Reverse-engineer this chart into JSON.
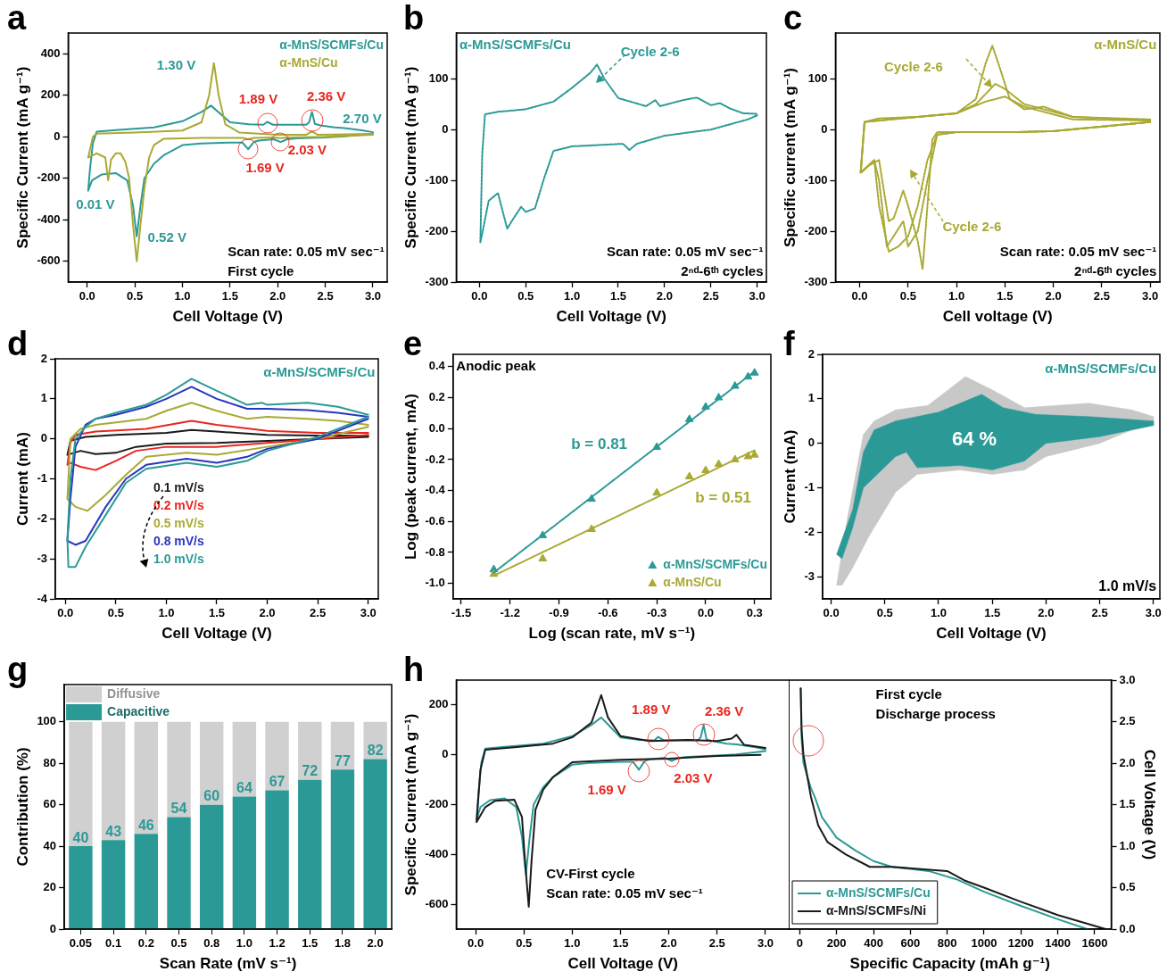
{
  "chart_data": [
    {
      "type": "line",
      "title": "a",
      "xlabel": "Cell Voltage (V)",
      "ylabel": "Specific Current (mA g⁻¹)",
      "xlim": [
        -0.2,
        3.15
      ],
      "ylim": [
        -700,
        500
      ],
      "xticks": [
        {
          "value": 0,
          "label": "0.0"
        },
        0.5,
        {
          "value": 1,
          "label": "1.0"
        },
        1.5,
        {
          "value": 2,
          "label": "2.0"
        },
        2.5,
        {
          "value": 3,
          "label": "3.0"
        }
      ],
      "yticks": [
        -600,
        -400,
        -200,
        0,
        200,
        400
      ],
      "legend": "top right",
      "series": [
        {
          "name": "α-MnS/SCMFs/Cu",
          "color": "#2b9a96",
          "x": [
            3.0,
            2.7,
            2.5,
            2.2,
            2.1,
            2.03,
            1.96,
            1.8,
            1.75,
            1.69,
            1.63,
            1.5,
            1.2,
            1.0,
            0.8,
            0.7,
            0.6,
            0.56,
            0.52,
            0.48,
            0.42,
            0.3,
            0.15,
            0.05,
            0.01,
            0.03,
            0.06,
            0.1,
            0.3,
            0.7,
            1.0,
            1.2,
            1.3,
            1.4,
            1.5,
            1.7,
            1.85,
            1.89,
            1.95,
            2.3,
            2.33,
            2.36,
            2.39,
            2.45,
            2.6,
            2.7,
            2.9,
            3.0
          ],
          "values": [
            15,
            2,
            -3,
            -8,
            -12,
            -25,
            -12,
            -18,
            -25,
            -60,
            -28,
            -28,
            -32,
            -40,
            -90,
            -130,
            -200,
            -330,
            -480,
            -330,
            -210,
            -175,
            -182,
            -210,
            -260,
            -150,
            -30,
            25,
            32,
            45,
            75,
            120,
            150,
            110,
            70,
            60,
            58,
            72,
            58,
            58,
            70,
            120,
            62,
            55,
            45,
            42,
            30,
            22
          ]
        },
        {
          "name": "α-MnS/Cu",
          "color": "#a9a934",
          "x": [
            3.0,
            2.5,
            2.1,
            2.03,
            1.96,
            1.75,
            1.69,
            1.63,
            1.2,
            0.8,
            0.7,
            0.65,
            0.6,
            0.56,
            0.52,
            0.48,
            0.44,
            0.4,
            0.35,
            0.3,
            0.25,
            0.22,
            0.19,
            0.1,
            0.01,
            0.03,
            0.06,
            0.1,
            0.5,
            1.0,
            1.2,
            1.28,
            1.33,
            1.38,
            1.45,
            1.6,
            2.0,
            2.3,
            2.36,
            2.42,
            3.0
          ],
          "values": [
            10,
            0,
            -3,
            -6,
            -3,
            -5,
            -12,
            -5,
            -5,
            -10,
            -40,
            -100,
            -250,
            -420,
            -600,
            -420,
            -200,
            -120,
            -80,
            -80,
            -110,
            -210,
            -100,
            -80,
            -100,
            -60,
            0,
            15,
            20,
            30,
            70,
            200,
            355,
            200,
            60,
            20,
            10,
            10,
            25,
            10,
            14
          ]
        }
      ],
      "annotations": [
        {
          "text": "1.30 V",
          "x": 1.3,
          "y": 150
        },
        {
          "text": "1.89 V",
          "x": 1.89,
          "y": 65
        },
        {
          "text": "2.36 V",
          "x": 2.36,
          "y": 80
        },
        {
          "text": "2.70 V",
          "x": 2.7,
          "y": 40
        },
        {
          "text": "1.69 V",
          "x": 1.69,
          "y": -60
        },
        {
          "text": "2.03 V",
          "x": 2.03,
          "y": -25
        },
        {
          "text": "0.01 V",
          "x": 0.01,
          "y": -260
        },
        {
          "text": "0.52 V",
          "x": 0.52,
          "y": -480
        },
        "Scan rate: 0.05 mV sec⁻¹",
        "First cycle"
      ]
    },
    {
      "type": "line",
      "title": "b",
      "xlabel": "Cell Voltage (V)",
      "ylabel": "Specific Current (mA g⁻¹)",
      "xlim": [
        -0.25,
        3.1
      ],
      "ylim": [
        -300,
        190
      ],
      "xticks": [
        {
          "value": 0,
          "label": "0.0"
        },
        0.5,
        {
          "value": 1,
          "label": "1.0"
        },
        1.5,
        {
          "value": 2,
          "label": "2.0"
        },
        2.5,
        {
          "value": 3,
          "label": "3.0"
        }
      ],
      "yticks": [
        -300,
        -200,
        -100,
        0,
        100
      ],
      "series": [
        {
          "color": "#2b9a96",
          "line_style": "dotted",
          "x": [
            3.0,
            2.9,
            2.5,
            2.0,
            1.7,
            1.62,
            1.55,
            1.0,
            0.8,
            0.7,
            0.6,
            0.5,
            0.45,
            0.35,
            0.3,
            0.2,
            0.1,
            0.03,
            0.01,
            0.03,
            0.06,
            0.2,
            0.5,
            0.8,
            1.0,
            1.2,
            1.27,
            1.35,
            1.5,
            1.8,
            1.9,
            1.95,
            2.2,
            2.35,
            2.5,
            2.6,
            2.7,
            2.85,
            3.0
          ],
          "values": [
            28,
            20,
            0,
            -12,
            -28,
            -40,
            -28,
            -33,
            -42,
            -95,
            -155,
            -162,
            -152,
            -180,
            -195,
            -125,
            -140,
            -205,
            -222,
            -50,
            30,
            35,
            40,
            55,
            82,
            112,
            128,
            100,
            62,
            46,
            58,
            46,
            58,
            63,
            48,
            52,
            42,
            32,
            31
          ]
        }
      ],
      "annotations": [
        "α-MnS/SCMFs/Cu",
        "Cycle 2-6",
        "Scan rate: 0.05 mV sec⁻¹",
        "2ⁿᵈ-6ᵗʰ cycles"
      ]
    },
    {
      "type": "line",
      "title": "c",
      "xlabel": "Cell voltage (V)",
      "ylabel": "Specific current (mA g⁻¹)",
      "xlim": [
        -0.25,
        3.1
      ],
      "ylim": [
        -300,
        190
      ],
      "xticks": [
        {
          "value": 0,
          "label": "0.0"
        },
        0.5,
        {
          "value": 1,
          "label": "1.0"
        },
        1.5,
        {
          "value": 2,
          "label": "2.0"
        },
        2.5,
        {
          "value": 3,
          "label": "3.0"
        }
      ],
      "yticks": [
        -300,
        -200,
        -100,
        0,
        100
      ],
      "series": [
        {
          "color": "#a9a934",
          "line_style": "dotted",
          "x": [
            3.0,
            2.0,
            1.6,
            1.0,
            0.8,
            0.75,
            0.7,
            0.65,
            0.6,
            0.5,
            0.45,
            0.35,
            0.3,
            0.2,
            0.1,
            0.01,
            0.05,
            0.2,
            0.6,
            1.0,
            1.2,
            1.3,
            1.37,
            1.45,
            1.55,
            1.7,
            1.9,
            2.2,
            3.0
          ],
          "values": [
            15,
            -3,
            -5,
            -5,
            -5,
            -20,
            -150,
            -275,
            -220,
            -150,
            -120,
            -175,
            -180,
            -60,
            -70,
            -85,
            15,
            22,
            25,
            32,
            60,
            130,
            165,
            120,
            60,
            40,
            45,
            25,
            20
          ]
        },
        {
          "color": "#a9a934",
          "line_style": "dotted",
          "x": [
            3.0,
            2.0,
            1.6,
            1.0,
            0.8,
            0.7,
            0.6,
            0.5,
            0.45,
            0.35,
            0.28,
            0.2,
            0.15,
            0.01,
            0.05,
            0.6,
            1.0,
            1.2,
            1.4,
            1.5,
            1.7,
            1.9,
            2.2,
            3.0
          ],
          "values": [
            15,
            -3,
            -5,
            -5,
            -10,
            -100,
            -200,
            -230,
            -180,
            -210,
            -230,
            -100,
            -60,
            -85,
            15,
            25,
            32,
            50,
            90,
            80,
            50,
            40,
            25,
            18
          ]
        },
        {
          "color": "#a9a934",
          "line_style": "dotted",
          "x": [
            3.0,
            2.0,
            1.6,
            1.0,
            0.8,
            0.7,
            0.6,
            0.5,
            0.4,
            0.3,
            0.2,
            0.15,
            0.01,
            0.05,
            0.6,
            1.0,
            1.3,
            1.5,
            1.7,
            1.9,
            2.2,
            3.0
          ],
          "values": [
            15,
            -3,
            -5,
            -5,
            -10,
            -60,
            -150,
            -210,
            -230,
            -240,
            -150,
            -60,
            -85,
            15,
            25,
            32,
            55,
            65,
            45,
            35,
            20,
            18
          ]
        }
      ],
      "annotations": [
        "α-MnS/Cu",
        "Cycle 2-6",
        "Cycle 2-6",
        "Scan rate: 0.05 mV sec⁻¹",
        "2ⁿᵈ-6ᵗʰ cycles"
      ]
    },
    {
      "type": "line",
      "title": "d",
      "xlabel": "Cell Voltage (V)",
      "ylabel": "Current (mA)",
      "xlim": [
        -0.1,
        3.1
      ],
      "ylim": [
        -4,
        2
      ],
      "xticks": [
        {
          "value": 0,
          "label": "0.0"
        },
        0.5,
        {
          "value": 1,
          "label": "1.0"
        },
        1.5,
        {
          "value": 2,
          "label": "2.0"
        },
        2.5,
        {
          "value": 3,
          "label": "3.0"
        }
      ],
      "yticks": [
        -4,
        -3,
        -2,
        -1,
        0,
        1,
        2
      ],
      "legend": "bottom left",
      "series": [
        {
          "name": "0.1 mV/s",
          "color": "#1a1a1a",
          "x": [
            3.0,
            2.5,
            2.0,
            1.5,
            1.0,
            0.7,
            0.5,
            0.3,
            0.15,
            0.02,
            0.05,
            0.2,
            0.5,
            1.0,
            1.25,
            1.5,
            2.0,
            2.5,
            3.0
          ],
          "values": [
            0.05,
            0.0,
            -0.05,
            -0.1,
            -0.12,
            -0.2,
            -0.35,
            -0.38,
            -0.3,
            -0.4,
            -0.05,
            0.05,
            0.1,
            0.15,
            0.22,
            0.18,
            0.1,
            0.08,
            0.08
          ]
        },
        {
          "name": "0.2 mV/s",
          "color": "#e8261f",
          "x": [
            3.0,
            2.5,
            2.0,
            1.5,
            1.0,
            0.7,
            0.5,
            0.3,
            0.15,
            0.05,
            0.02,
            0.05,
            0.1,
            0.3,
            0.8,
            1.25,
            1.5,
            2.0,
            2.5,
            3.0
          ],
          "values": [
            0.1,
            0.0,
            -0.1,
            -0.2,
            -0.2,
            -0.3,
            -0.55,
            -0.78,
            -0.7,
            -0.6,
            -0.65,
            -0.1,
            0.1,
            0.18,
            0.25,
            0.45,
            0.35,
            0.2,
            0.15,
            0.15
          ]
        },
        {
          "name": "0.5 mV/s",
          "color": "#a9a934",
          "x": [
            3.0,
            2.5,
            2.0,
            1.5,
            1.2,
            0.8,
            0.6,
            0.4,
            0.22,
            0.1,
            0.02,
            0.05,
            0.15,
            0.3,
            0.8,
            1.0,
            1.25,
            1.5,
            1.8,
            2.0,
            2.4,
            2.7,
            3.0
          ],
          "values": [
            0.3,
            0.0,
            -0.2,
            -0.4,
            -0.35,
            -0.45,
            -0.9,
            -1.4,
            -1.8,
            -1.7,
            -1.5,
            0.0,
            0.25,
            0.35,
            0.5,
            0.7,
            0.9,
            0.7,
            0.5,
            0.55,
            0.5,
            0.45,
            0.35
          ]
        },
        {
          "name": "0.8 mV/s",
          "color": "#2a35c0",
          "x": [
            3.0,
            2.5,
            2.0,
            1.8,
            1.5,
            1.2,
            0.8,
            0.6,
            0.4,
            0.2,
            0.1,
            0.02,
            0.05,
            0.1,
            0.2,
            0.3,
            0.5,
            0.8,
            1.0,
            1.25,
            1.5,
            1.8,
            2.0,
            2.4,
            2.7,
            3.0
          ],
          "values": [
            0.5,
            0.0,
            -0.25,
            -0.45,
            -0.6,
            -0.5,
            -0.65,
            -1.0,
            -1.7,
            -2.55,
            -2.65,
            -2.55,
            -1.5,
            -0.2,
            0.35,
            0.5,
            0.6,
            0.8,
            1.0,
            1.3,
            1.0,
            0.75,
            0.75,
            0.72,
            0.65,
            0.55
          ]
        },
        {
          "name": "1.0 mV/s",
          "color": "#2b9a96",
          "x": [
            3.0,
            2.5,
            2.0,
            1.8,
            1.5,
            1.2,
            0.8,
            0.6,
            0.4,
            0.2,
            0.1,
            0.03,
            0.02,
            0.05,
            0.1,
            0.2,
            0.3,
            0.5,
            0.8,
            1.0,
            1.25,
            1.5,
            1.8,
            1.95,
            2.0,
            2.4,
            2.7,
            3.0
          ],
          "values": [
            0.55,
            0.05,
            -0.3,
            -0.55,
            -0.7,
            -0.6,
            -0.75,
            -1.1,
            -1.9,
            -2.7,
            -3.2,
            -3.2,
            -2.5,
            -1.0,
            0.0,
            0.3,
            0.5,
            0.65,
            0.85,
            1.1,
            1.5,
            1.2,
            0.85,
            0.9,
            0.85,
            0.9,
            0.8,
            0.6
          ]
        }
      ],
      "annotations": [
        "α-MnS/SCMFs/Cu"
      ]
    },
    {
      "type": "scatter",
      "title": "e",
      "xlabel": "Log (scan rate, mV s⁻¹)",
      "ylabel": "Log (peak current, mA)",
      "xlim": [
        -1.55,
        0.4
      ],
      "ylim": [
        -1.1,
        0.48
      ],
      "xticks": [
        -1.5,
        -1.2,
        -0.9,
        -0.6,
        -0.3,
        {
          "value": 0,
          "label": "0.0"
        },
        0.3
      ],
      "yticks": [
        {
          "value": -1,
          "label": "-1.0"
        },
        -0.8,
        -0.6,
        -0.4,
        -0.2,
        {
          "value": 0,
          "label": "0.0"
        },
        0.2,
        0.4
      ],
      "legend": "bottom right",
      "marker": "triangle",
      "series": [
        {
          "name": "α-MnS/SCMFs/Cu",
          "color": "#2b9a96",
          "x": [
            -1.3,
            -1.0,
            -0.7,
            -0.3,
            -0.1,
            0.0,
            0.08,
            0.18,
            0.26,
            0.3
          ],
          "values": [
            -0.91,
            -0.69,
            -0.455,
            -0.12,
            0.06,
            0.14,
            0.2,
            0.275,
            0.335,
            0.36
          ]
        },
        {
          "name": "α-MnS/Cu",
          "color": "#a9a934",
          "x": [
            -1.3,
            -1.0,
            -0.7,
            -0.3,
            -0.1,
            0.0,
            0.08,
            0.18,
            0.26,
            0.3
          ],
          "values": [
            -0.94,
            -0.84,
            -0.65,
            -0.415,
            -0.31,
            -0.27,
            -0.23,
            -0.2,
            -0.18,
            -0.17
          ]
        },
        {
          "type": "line",
          "color": "#2b9a96",
          "line_style": "dotted",
          "marker": "none",
          "x": [
            -1.3,
            0.3
          ],
          "values": [
            -0.93,
            0.37
          ]
        },
        {
          "type": "line",
          "color": "#a9a934",
          "line_style": "dotted",
          "marker": "none",
          "x": [
            -1.3,
            0.3
          ],
          "values": [
            -0.95,
            -0.14
          ]
        }
      ],
      "annotations": [
        "Anodic peak",
        "b = 0.81",
        "b = 0.51"
      ]
    },
    {
      "type": "area",
      "title": "f",
      "xlabel": "Cell Voltage (V)",
      "ylabel": "Current (mA)",
      "xlim": [
        -0.08,
        3.06
      ],
      "ylim": [
        -3.5,
        2
      ],
      "xticks": [
        {
          "value": 0,
          "label": "0.0"
        },
        0.5,
        {
          "value": 1,
          "label": "1.0"
        },
        1.5,
        {
          "value": 2,
          "label": "2.0"
        },
        2.5,
        {
          "value": 3,
          "label": "3.0"
        }
      ],
      "yticks": [
        -3,
        -2,
        -1,
        0,
        1,
        2
      ],
      "series": [
        {
          "color": "#c8c8c8",
          "x": [
            0.05,
            0.15,
            0.3,
            0.4,
            0.6,
            0.9,
            1.25,
            1.5,
            1.8,
            2.4,
            2.8,
            3.0,
            3.0,
            2.5,
            2.0,
            1.8,
            1.5,
            1.2,
            0.8,
            0.6,
            0.35,
            0.2,
            0.1
          ],
          "values": [
            -3.2,
            -1.7,
            0.2,
            0.5,
            0.75,
            0.85,
            1.5,
            1.2,
            0.8,
            0.9,
            0.75,
            0.6,
            0.5,
            0.0,
            -0.3,
            -0.6,
            -0.7,
            -0.6,
            -0.7,
            -1.1,
            -2.1,
            -2.8,
            -3.2
          ]
        },
        {
          "color": "#2b9a96",
          "x": [
            0.05,
            0.2,
            0.3,
            0.4,
            0.6,
            1.0,
            1.2,
            1.4,
            1.6,
            1.9,
            2.4,
            3.0,
            3.0,
            2.5,
            2.0,
            1.8,
            1.5,
            1.2,
            0.8,
            0.7,
            0.6,
            0.3,
            0.2,
            0.1
          ],
          "values": [
            -2.5,
            -1.5,
            -0.2,
            0.3,
            0.5,
            0.7,
            0.9,
            1.1,
            0.8,
            0.65,
            0.6,
            0.5,
            0.4,
            0.15,
            0.0,
            -0.4,
            -0.6,
            -0.5,
            -0.55,
            -0.2,
            -0.3,
            -1.0,
            -1.9,
            -2.6
          ]
        }
      ],
      "annotations": [
        "α-MnS/SCMFs/Cu",
        "64 %",
        "1.0 mV/s"
      ]
    },
    {
      "type": "bar",
      "title": "g",
      "xlabel": "Scan Rate (mV s⁻¹)",
      "ylabel": "Contribution (%)",
      "categories": [
        "0.05",
        "0.1",
        "0.2",
        "0.5",
        "0.8",
        "1.0",
        "1.2",
        "1.5",
        "1.8",
        "2.0"
      ],
      "ylim": [
        0,
        118
      ],
      "yticks": [
        0,
        20,
        40,
        60,
        80,
        100
      ],
      "stacked": true,
      "legend": "top left",
      "series": [
        {
          "name": "Capacitive",
          "color": "#2b9a96",
          "values": [
            40,
            43,
            46,
            54,
            60,
            64,
            67,
            72,
            77,
            82
          ],
          "value_labels": [
            "40",
            "43",
            "46",
            "54",
            "60",
            "64",
            "67",
            "72",
            "77",
            "82"
          ]
        },
        {
          "name": "Diffusive",
          "color": "#d0d0d0",
          "values": [
            60,
            57,
            54,
            46,
            40,
            36,
            33,
            28,
            23,
            18
          ]
        }
      ]
    },
    {
      "type": "line",
      "title": "h",
      "xlabel": "Cell Voltage (V)",
      "ylabel": "Specific Current (mA g⁻¹)",
      "xlim": [
        -0.2,
        3.25
      ],
      "ylim": [
        -700,
        300
      ],
      "xticks": [
        {
          "value": 0,
          "label": "0.0"
        },
        0.5,
        {
          "value": 1,
          "label": "1.0"
        },
        1.5,
        {
          "value": 2,
          "label": "2.0"
        },
        2.5,
        {
          "value": 3,
          "label": "3.0"
        }
      ],
      "yticks": [
        -600,
        -400,
        -200,
        0,
        200
      ],
      "series": [
        {
          "color": "#2b9a96",
          "x": [
            3.0,
            2.7,
            2.5,
            2.2,
            2.1,
            2.03,
            1.96,
            1.8,
            1.75,
            1.69,
            1.63,
            1.5,
            1.2,
            1.0,
            0.8,
            0.7,
            0.6,
            0.56,
            0.52,
            0.48,
            0.42,
            0.3,
            0.15,
            0.05,
            0.01,
            0.03,
            0.06,
            0.1,
            0.3,
            0.7,
            1.0,
            1.2,
            1.3,
            1.4,
            1.5,
            1.7,
            1.85,
            1.89,
            1.95,
            2.3,
            2.33,
            2.36,
            2.39,
            2.45,
            2.6,
            2.7,
            2.9,
            3.0
          ],
          "values": [
            15,
            2,
            -3,
            -8,
            -12,
            -25,
            -12,
            -18,
            -25,
            -60,
            -28,
            -28,
            -32,
            -40,
            -90,
            -130,
            -200,
            -330,
            -480,
            -330,
            -210,
            -175,
            -182,
            -210,
            -260,
            -150,
            -30,
            25,
            32,
            45,
            75,
            120,
            150,
            110,
            70,
            60,
            58,
            72,
            58,
            58,
            70,
            120,
            62,
            55,
            45,
            42,
            30,
            22
          ]
        },
        {
          "color": "#1a1a1a",
          "x": [
            2.95,
            2.5,
            2.0,
            1.5,
            1.0,
            0.8,
            0.7,
            0.62,
            0.58,
            0.55,
            0.51,
            0.48,
            0.4,
            0.2,
            0.1,
            0.01,
            0.05,
            0.1,
            0.4,
            0.8,
            1.0,
            1.2,
            1.3,
            1.37,
            1.5,
            1.8,
            2.2,
            2.5,
            2.65,
            2.7,
            2.78,
            3.0
          ],
          "values": [
            0,
            -5,
            -15,
            -20,
            -30,
            -90,
            -140,
            -220,
            -420,
            -610,
            -420,
            -250,
            -180,
            -185,
            -210,
            -270,
            -60,
            20,
            30,
            45,
            70,
            130,
            240,
            150,
            75,
            55,
            60,
            55,
            65,
            80,
            40,
            28
          ]
        }
      ],
      "annotations": [
        {
          "text": "1.89 V",
          "x": 1.89,
          "y": 65
        },
        {
          "text": "2.36 V",
          "x": 2.36,
          "y": 80
        },
        {
          "text": "1.69 V",
          "x": 1.69,
          "y": -65
        },
        {
          "text": "2.03 V",
          "x": 2.03,
          "y": -20
        },
        "CV-First cycle",
        "Scan rate: 0.05 mV sec⁻¹"
      ]
    },
    {
      "type": "line",
      "xlabel": "Specific Capacity (mAh g⁻¹)",
      "y2label": "Cell Voltage (V)",
      "xlim": [
        -60,
        1690
      ],
      "y2lim": [
        0,
        3
      ],
      "xticks": [
        0,
        200,
        400,
        600,
        800,
        1000,
        1200,
        1400,
        1600
      ],
      "y2ticks": [
        {
          "value": 0,
          "label": "0.0"
        },
        0.5,
        {
          "value": 1,
          "label": "1.0"
        },
        1.5,
        {
          "value": 2,
          "label": "2.0"
        },
        2.5,
        {
          "value": 3,
          "label": "3.0"
        }
      ],
      "legend": "bottom left",
      "series": [
        {
          "name": "α-MnS/SCMFs/Cu",
          "color": "#2b9a96",
          "axis": "y2",
          "x": [
            5,
            10,
            20,
            40,
            60,
            80,
            120,
            200,
            300,
            400,
            500,
            700,
            850,
            1000,
            1200,
            1400,
            1560
          ],
          "values": [
            2.9,
            2.3,
            2.0,
            1.85,
            1.7,
            1.6,
            1.35,
            1.1,
            0.95,
            0.82,
            0.75,
            0.7,
            0.6,
            0.45,
            0.28,
            0.12,
            0.0
          ]
        },
        {
          "name": "α-MnS/SCMFs/Ni",
          "color": "#1a1a1a",
          "axis": "y2",
          "x": [
            5,
            10,
            20,
            40,
            60,
            100,
            150,
            250,
            380,
            500,
            800,
            900,
            1000,
            1200,
            1400,
            1660
          ],
          "values": [
            2.9,
            2.4,
            2.1,
            1.85,
            1.6,
            1.25,
            1.05,
            0.9,
            0.75,
            0.75,
            0.7,
            0.58,
            0.5,
            0.33,
            0.17,
            0.0
          ]
        }
      ],
      "annotations": [
        "First cycle",
        "Discharge process"
      ]
    }
  ]
}
